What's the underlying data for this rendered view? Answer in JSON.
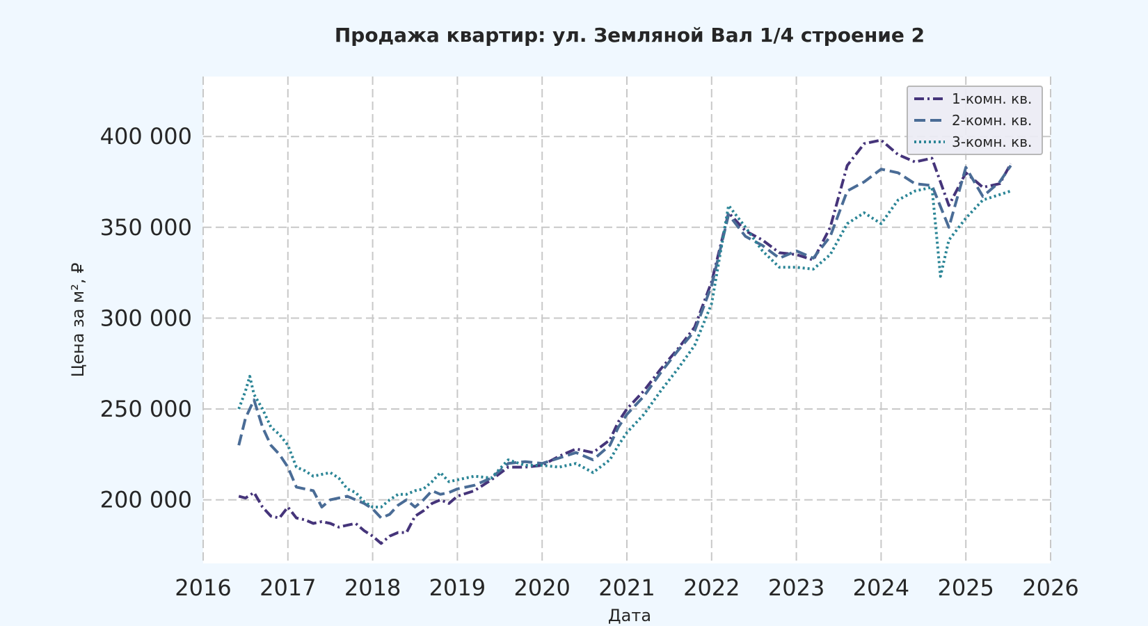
{
  "chart_data": {
    "type": "line",
    "title": "Продажа квартир: ул. Земляной Вал 1/4 строение 2",
    "xlabel": "Дата",
    "ylabel": "Цена за м², ₽",
    "xlim": [
      2016,
      2026
    ],
    "ylim": [
      165000,
      433000
    ],
    "x_ticks": [
      "2016",
      "2017",
      "2018",
      "2019",
      "2020",
      "2021",
      "2022",
      "2023",
      "2024",
      "2025",
      "2026"
    ],
    "y_ticks": [
      {
        "value": 200000,
        "label": "200 000"
      },
      {
        "value": 250000,
        "label": "250 000"
      },
      {
        "value": 300000,
        "label": "300 000"
      },
      {
        "value": 350000,
        "label": "350 000"
      },
      {
        "value": 400000,
        "label": "400 000"
      }
    ],
    "grid": true,
    "legend_position": "top-right",
    "series": [
      {
        "name": "1-комн. кв.",
        "color": "#45347a",
        "dash": "dashdot",
        "x": [
          2016.42,
          2016.5,
          2016.6,
          2016.7,
          2016.8,
          2016.9,
          2017.0,
          2017.1,
          2017.2,
          2017.3,
          2017.4,
          2017.5,
          2017.6,
          2017.7,
          2017.8,
          2017.9,
          2018.0,
          2018.1,
          2018.2,
          2018.3,
          2018.4,
          2018.5,
          2018.6,
          2018.7,
          2018.8,
          2018.9,
          2019.0,
          2019.2,
          2019.4,
          2019.6,
          2019.8,
          2020.0,
          2020.2,
          2020.4,
          2020.6,
          2020.8,
          2020.9,
          2021.0,
          2021.2,
          2021.4,
          2021.6,
          2021.8,
          2022.0,
          2022.2,
          2022.4,
          2022.6,
          2022.8,
          2023.0,
          2023.2,
          2023.4,
          2023.6,
          2023.8,
          2024.0,
          2024.2,
          2024.4,
          2024.6,
          2024.8,
          2025.0,
          2025.2,
          2025.4,
          2025.53
        ],
        "values": [
          202000,
          201000,
          204000,
          196000,
          191000,
          190000,
          196000,
          190000,
          189000,
          187000,
          188000,
          187000,
          185000,
          186000,
          187000,
          183000,
          180000,
          176000,
          180000,
          182000,
          182000,
          191000,
          194000,
          198000,
          200000,
          198000,
          202000,
          205000,
          211000,
          218000,
          218000,
          219000,
          224000,
          228000,
          226000,
          233000,
          243000,
          250000,
          260000,
          272000,
          283000,
          295000,
          320000,
          358000,
          348000,
          343000,
          336000,
          335000,
          332000,
          350000,
          384000,
          396000,
          398000,
          390000,
          386000,
          388000,
          362000,
          380000,
          372000,
          374000,
          385000
        ]
      },
      {
        "name": "2-комн. кв.",
        "color": "#4a6c96",
        "dash": "dashed",
        "x": [
          2016.42,
          2016.5,
          2016.6,
          2016.7,
          2016.8,
          2016.9,
          2017.0,
          2017.1,
          2017.2,
          2017.3,
          2017.4,
          2017.5,
          2017.6,
          2017.7,
          2017.8,
          2017.9,
          2018.0,
          2018.1,
          2018.2,
          2018.3,
          2018.4,
          2018.5,
          2018.6,
          2018.7,
          2018.8,
          2018.9,
          2019.0,
          2019.2,
          2019.4,
          2019.6,
          2019.8,
          2020.0,
          2020.2,
          2020.4,
          2020.6,
          2020.8,
          2020.9,
          2021.0,
          2021.2,
          2021.4,
          2021.6,
          2021.8,
          2022.0,
          2022.2,
          2022.4,
          2022.6,
          2022.8,
          2023.0,
          2023.2,
          2023.4,
          2023.6,
          2023.8,
          2024.0,
          2024.2,
          2024.4,
          2024.6,
          2024.8,
          2025.0,
          2025.2,
          2025.4,
          2025.53
        ],
        "values": [
          230000,
          245000,
          255000,
          240000,
          230000,
          225000,
          218000,
          207000,
          206000,
          205000,
          196000,
          200000,
          201000,
          202000,
          200000,
          198000,
          195000,
          190000,
          192000,
          197000,
          200000,
          196000,
          200000,
          205000,
          203000,
          204000,
          206000,
          208000,
          212000,
          220000,
          221000,
          220000,
          223000,
          226000,
          222000,
          230000,
          240000,
          247000,
          257000,
          270000,
          282000,
          293000,
          318000,
          357000,
          345000,
          340000,
          333000,
          337000,
          333000,
          345000,
          370000,
          375000,
          382000,
          380000,
          374000,
          373000,
          350000,
          383000,
          367000,
          375000,
          384000
        ]
      },
      {
        "name": "3-комн. кв.",
        "color": "#2b8596",
        "dash": "dotted",
        "x": [
          2016.42,
          2016.5,
          2016.55,
          2016.6,
          2016.7,
          2016.8,
          2016.9,
          2017.0,
          2017.1,
          2017.2,
          2017.3,
          2017.4,
          2017.5,
          2017.6,
          2017.7,
          2017.8,
          2017.9,
          2018.0,
          2018.1,
          2018.2,
          2018.3,
          2018.4,
          2018.5,
          2018.6,
          2018.7,
          2018.8,
          2018.9,
          2019.0,
          2019.2,
          2019.4,
          2019.6,
          2019.8,
          2020.0,
          2020.2,
          2020.4,
          2020.6,
          2020.8,
          2020.9,
          2021.0,
          2021.2,
          2021.4,
          2021.6,
          2021.8,
          2022.0,
          2022.2,
          2022.4,
          2022.6,
          2022.8,
          2023.0,
          2023.2,
          2023.4,
          2023.6,
          2023.8,
          2024.0,
          2024.2,
          2024.4,
          2024.6,
          2024.7,
          2024.8,
          2025.0,
          2025.2,
          2025.4,
          2025.53
        ],
        "values": [
          250000,
          260000,
          268000,
          258000,
          250000,
          240000,
          236000,
          230000,
          218000,
          216000,
          213000,
          214000,
          215000,
          212000,
          206000,
          204000,
          199000,
          196000,
          196000,
          200000,
          203000,
          203000,
          205000,
          206000,
          210000,
          215000,
          210000,
          211000,
          213000,
          212000,
          222000,
          219000,
          219000,
          218000,
          220000,
          215000,
          222000,
          230000,
          237000,
          247000,
          260000,
          272000,
          285000,
          308000,
          362000,
          350000,
          337000,
          328000,
          328000,
          327000,
          335000,
          352000,
          358000,
          352000,
          365000,
          370000,
          372000,
          323000,
          343000,
          355000,
          365000,
          368000,
          370000
        ]
      }
    ]
  }
}
